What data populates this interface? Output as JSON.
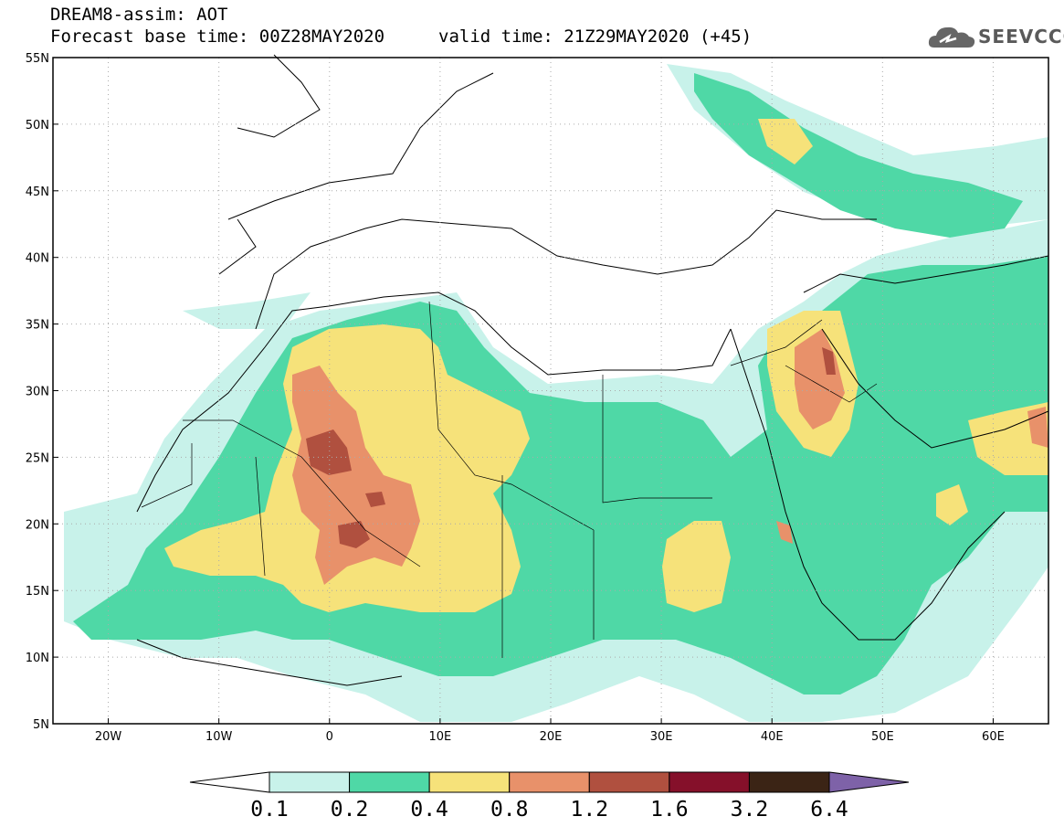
{
  "header": {
    "model_title": "DREAM8-assim: AOT",
    "base_time": "Forecast base time: 00Z28MAY2020",
    "valid_time": "valid time: 21Z29MAY2020 (+45)"
  },
  "logo": {
    "text": "SEEVCCC",
    "icon": "cloud-logo-icon"
  },
  "map": {
    "lon_range": [
      -25,
      65
    ],
    "lat_range": [
      5,
      55
    ],
    "x_ticks": [
      {
        "lon": -20,
        "label": "20W"
      },
      {
        "lon": -10,
        "label": "10W"
      },
      {
        "lon": 0,
        "label": "0"
      },
      {
        "lon": 10,
        "label": "10E"
      },
      {
        "lon": 20,
        "label": "20E"
      },
      {
        "lon": 30,
        "label": "30E"
      },
      {
        "lon": 40,
        "label": "40E"
      },
      {
        "lon": 50,
        "label": "50E"
      },
      {
        "lon": 60,
        "label": "60E"
      }
    ],
    "y_ticks": [
      {
        "lat": 55,
        "label": "55N"
      },
      {
        "lat": 50,
        "label": "50N"
      },
      {
        "lat": 45,
        "label": "45N"
      },
      {
        "lat": 40,
        "label": "40N"
      },
      {
        "lat": 35,
        "label": "35N"
      },
      {
        "lat": 30,
        "label": "30N"
      },
      {
        "lat": 25,
        "label": "25N"
      },
      {
        "lat": 20,
        "label": "20N"
      },
      {
        "lat": 15,
        "label": "15N"
      },
      {
        "lat": 10,
        "label": "10N"
      },
      {
        "lat": 5,
        "label": "5N"
      }
    ]
  },
  "colorbar": {
    "bins": [
      "#ffffff",
      "#c8f2ea",
      "#4fd8a6",
      "#f6e27a",
      "#e8916a",
      "#b0503f",
      "#85102a",
      "#3b2415",
      "#7e62a8"
    ],
    "labels": [
      "0.1",
      "0.2",
      "0.4",
      "0.8",
      "1.2",
      "1.6",
      "3.2",
      "6.4"
    ]
  }
}
